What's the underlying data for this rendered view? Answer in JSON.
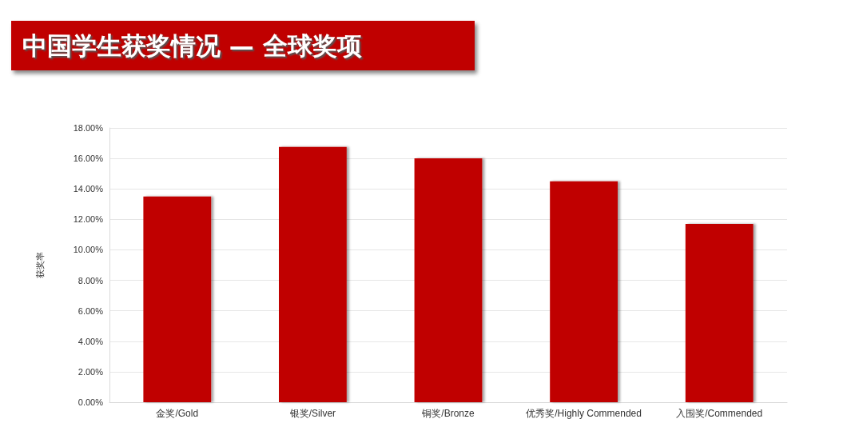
{
  "chart_data": {
    "type": "bar",
    "title": "中国学生获奖情况 — 全球奖项",
    "ylabel": "获奖率",
    "categories": [
      "金奖/Gold",
      "银奖/Silver",
      "铜奖/Bronze",
      "优秀奖/Highly Commended",
      "入围奖/Commended"
    ],
    "values": [
      13.5,
      16.75,
      16.0,
      14.5,
      11.7
    ],
    "color": "#c00000",
    "ylim": [
      0,
      18
    ],
    "yticks": [
      {
        "value": 0,
        "label": "0.00%"
      },
      {
        "value": 2,
        "label": "2.00%"
      },
      {
        "value": 4,
        "label": "4.00%"
      },
      {
        "value": 6,
        "label": "6.00%"
      },
      {
        "value": 8,
        "label": "8.00%"
      },
      {
        "value": 10,
        "label": "10.00%"
      },
      {
        "value": 12,
        "label": "12.00%"
      },
      {
        "value": 14,
        "label": "14.00%"
      },
      {
        "value": 16,
        "label": "16.00%"
      },
      {
        "value": 18,
        "label": "18.00%"
      }
    ],
    "grid": "y"
  }
}
